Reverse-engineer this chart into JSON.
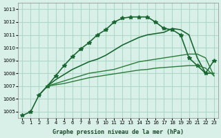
{
  "title": "Graphe pression niveau de la mer (hPa)",
  "background_color": "#d8f0e8",
  "grid_color": "#b0d8c8",
  "xlim": [
    -0.5,
    23.5
  ],
  "ylim": [
    1004.5,
    1013.5
  ],
  "yticks": [
    1005,
    1006,
    1007,
    1008,
    1009,
    1010,
    1011,
    1012,
    1013
  ],
  "xticks": [
    0,
    1,
    2,
    3,
    4,
    5,
    6,
    7,
    8,
    9,
    10,
    11,
    12,
    13,
    14,
    15,
    16,
    17,
    18,
    19,
    20,
    21,
    22,
    23
  ],
  "series": [
    {
      "x": [
        0,
        1,
        2,
        3,
        4,
        5,
        6,
        7,
        8,
        9,
        10,
        11,
        12,
        13,
        14,
        15,
        16,
        17,
        18,
        19,
        20,
        21,
        22,
        23
      ],
      "y": [
        1004.7,
        1005.0,
        1006.3,
        1007.0,
        1007.8,
        1008.6,
        1009.3,
        1009.9,
        1010.4,
        1011.0,
        1011.4,
        1012.0,
        1012.3,
        1012.4,
        1012.4,
        1012.4,
        1012.0,
        1011.5,
        1011.4,
        1011.0,
        1009.2,
        1008.6,
        1008.0,
        1009.0
      ],
      "color": "#1a6632",
      "marker": "*",
      "linewidth": 1.2,
      "markersize": 4
    },
    {
      "x": [
        2,
        3,
        4,
        5,
        6,
        7,
        8,
        9,
        10,
        11,
        12,
        13,
        14,
        15,
        16,
        17,
        18,
        19,
        20,
        21,
        22,
        23
      ],
      "y": [
        1006.3,
        1007.0,
        1007.5,
        1007.9,
        1008.3,
        1008.6,
        1008.9,
        1009.1,
        1009.4,
        1009.8,
        1010.2,
        1010.5,
        1010.8,
        1011.0,
        1011.1,
        1011.2,
        1011.5,
        1011.4,
        1011.0,
        1009.2,
        1008.0,
        1008.0
      ],
      "color": "#1a6632",
      "marker": null,
      "linewidth": 1.2,
      "markersize": 0
    },
    {
      "x": [
        3,
        4,
        5,
        6,
        7,
        8,
        9,
        10,
        11,
        12,
        13,
        14,
        15,
        16,
        17,
        18,
        19,
        20,
        21,
        22,
        23
      ],
      "y": [
        1007.0,
        1007.2,
        1007.4,
        1007.6,
        1007.8,
        1008.0,
        1008.1,
        1008.2,
        1008.3,
        1008.5,
        1008.7,
        1008.9,
        1009.0,
        1009.1,
        1009.2,
        1009.3,
        1009.4,
        1009.5,
        1009.5,
        1009.2,
        1007.8
      ],
      "color": "#2a7a3a",
      "marker": null,
      "linewidth": 1.0,
      "markersize": 0
    },
    {
      "x": [
        3,
        4,
        5,
        6,
        7,
        8,
        9,
        10,
        11,
        12,
        13,
        14,
        15,
        16,
        17,
        18,
        19,
        20,
        21,
        22,
        23
      ],
      "y": [
        1007.0,
        1007.1,
        1007.2,
        1007.35,
        1007.5,
        1007.65,
        1007.75,
        1007.85,
        1007.95,
        1008.05,
        1008.15,
        1008.25,
        1008.3,
        1008.4,
        1008.45,
        1008.5,
        1008.55,
        1008.6,
        1008.6,
        1008.4,
        1007.8
      ],
      "color": "#2a7a3a",
      "marker": null,
      "linewidth": 1.0,
      "markersize": 0
    }
  ]
}
